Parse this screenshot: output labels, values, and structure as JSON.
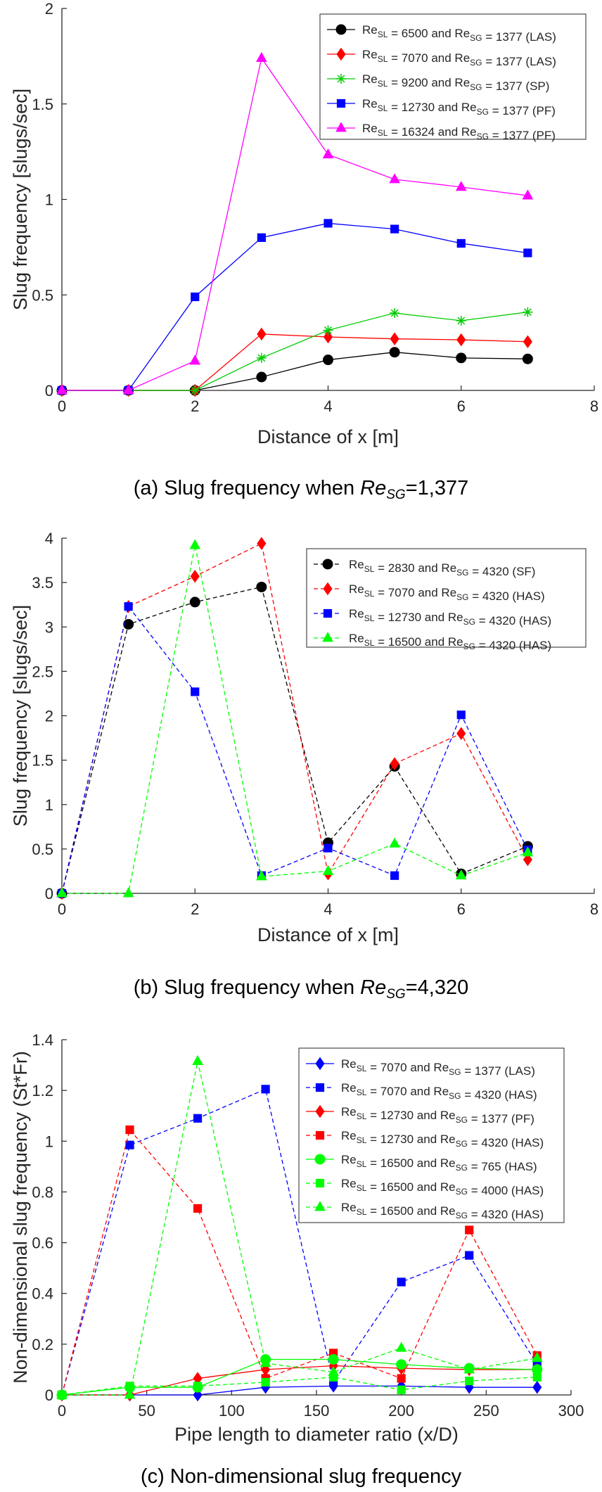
{
  "chart_data": [
    {
      "type": "line",
      "caption": "(a) Slug frequency when Re_SG=1,377",
      "caption_parts": {
        "prefix": "(a)  Slug frequency when ",
        "var": "Re",
        "sub": "SG",
        "suffix": "=1,377"
      },
      "xlabel": "Distance of x [m]",
      "ylabel": "Slug frequency [slugs/sec]",
      "xlim": [
        0,
        8
      ],
      "ylim": [
        0,
        2
      ],
      "xticks": [
        0,
        2,
        4,
        6,
        8
      ],
      "xtick_labels": [
        "0",
        "2",
        "4",
        "6",
        "8"
      ],
      "yticks": [
        0,
        0.5,
        1,
        1.5,
        2
      ],
      "ytick_labels": [
        "0",
        "0.5",
        "1",
        "1.5",
        "2"
      ],
      "grid": false,
      "legend_position": "top-right",
      "line_style": "solid",
      "series": [
        {
          "legend": {
            "sl": "6500",
            "sg": "1377",
            "regime": "(LAS)"
          },
          "color": "#000000",
          "marker": "circle",
          "x": [
            0,
            1,
            2,
            3,
            4,
            5,
            6,
            7
          ],
          "y": [
            0,
            0,
            0,
            0.07,
            0.16,
            0.2,
            0.17,
            0.165
          ]
        },
        {
          "legend": {
            "sl": "7070",
            "sg": "1377",
            "regime": "(LAS)"
          },
          "color": "#ff0000",
          "marker": "diamond",
          "x": [
            0,
            1,
            2,
            3,
            4,
            5,
            6,
            7
          ],
          "y": [
            0,
            0,
            0,
            0.295,
            0.28,
            0.27,
            0.265,
            0.255
          ]
        },
        {
          "legend": {
            "sl": "9200",
            "sg": "1377",
            "regime": "(SP)"
          },
          "color": "#00cc00",
          "marker": "asterisk",
          "x": [
            0,
            1,
            2,
            3,
            4,
            5,
            6,
            7
          ],
          "y": [
            0,
            0,
            0,
            0.17,
            0.315,
            0.405,
            0.365,
            0.41
          ]
        },
        {
          "legend": {
            "sl": "12730",
            "sg": "1377",
            "regime": "(PF)"
          },
          "color": "#0000ff",
          "marker": "square",
          "x": [
            0,
            1,
            2,
            3,
            4,
            5,
            6,
            7
          ],
          "y": [
            0,
            0,
            0.49,
            0.8,
            0.875,
            0.845,
            0.77,
            0.72
          ]
        },
        {
          "legend": {
            "sl": "16324",
            "sg": "1377",
            "regime": "(PF)"
          },
          "color": "#ff00ff",
          "marker": "triangle",
          "x": [
            0,
            1,
            2,
            3,
            4,
            5,
            6,
            7
          ],
          "y": [
            0,
            0,
            0.155,
            1.74,
            1.235,
            1.105,
            1.065,
            1.02
          ]
        }
      ]
    },
    {
      "type": "line",
      "caption": "(b) Slug frequency when Re_SG=4,320",
      "caption_parts": {
        "prefix": "(b)  Slug frequency when ",
        "var": "Re",
        "sub": "SG",
        "suffix": "=4,320"
      },
      "xlabel": "Distance of x [m]",
      "ylabel": "Slug frequency [slugs/sec]",
      "xlim": [
        0,
        8
      ],
      "ylim": [
        0,
        4
      ],
      "xticks": [
        0,
        2,
        4,
        6,
        8
      ],
      "xtick_labels": [
        "0",
        "2",
        "4",
        "6",
        "8"
      ],
      "yticks": [
        0,
        0.5,
        1,
        1.5,
        2,
        2.5,
        3,
        3.5,
        4
      ],
      "ytick_labels": [
        "0",
        "0.5",
        "1",
        "1.5",
        "2",
        "2.5",
        "3",
        "3.5",
        "4"
      ],
      "grid": false,
      "legend_position": "top-right",
      "line_style": "dashed",
      "series": [
        {
          "legend": {
            "sl": "2830",
            "sg": "4320",
            "regime": "(SF)"
          },
          "color": "#000000",
          "marker": "circle",
          "x": [
            0,
            1,
            2,
            3,
            4,
            5,
            6,
            7
          ],
          "y": [
            0,
            3.03,
            3.28,
            3.45,
            0.57,
            1.43,
            0.22,
            0.53
          ]
        },
        {
          "legend": {
            "sl": "7070",
            "sg": "4320",
            "regime": "(HAS)"
          },
          "color": "#ff0000",
          "marker": "diamond",
          "x": [
            0,
            1,
            2,
            3,
            4,
            5,
            6,
            7
          ],
          "y": [
            0,
            3.23,
            3.57,
            3.94,
            0.22,
            1.46,
            1.8,
            0.38
          ]
        },
        {
          "legend": {
            "sl": "12730",
            "sg": "4320",
            "regime": "(HAS)"
          },
          "color": "#0000ff",
          "marker": "square",
          "x": [
            0,
            1,
            2,
            3,
            4,
            5,
            6,
            7
          ],
          "y": [
            0,
            3.23,
            2.27,
            0.2,
            0.51,
            0.2,
            2.01,
            0.49
          ]
        },
        {
          "legend": {
            "sl": "16500",
            "sg": "4320",
            "regime": "(HAS)"
          },
          "color": "#00ff00",
          "marker": "triangle",
          "x": [
            0,
            1,
            2,
            3,
            4,
            5,
            6,
            7
          ],
          "y": [
            0,
            0,
            3.92,
            0.19,
            0.25,
            0.56,
            0.2,
            0.46
          ]
        }
      ]
    },
    {
      "type": "line",
      "caption": "(c) Non-dimensional slug frequency",
      "caption_parts": {
        "prefix": "(c)  Non-dimensional slug frequency",
        "var": "",
        "sub": "",
        "suffix": ""
      },
      "xlabel": "Pipe length to diameter ratio (x/D)",
      "ylabel": "Non-dimensional slug frequency (St*Fr)",
      "xlim": [
        0,
        300
      ],
      "ylim": [
        0,
        1.4
      ],
      "xticks": [
        0,
        50,
        100,
        150,
        200,
        250,
        300
      ],
      "xtick_labels": [
        "0",
        "50",
        "100",
        "150",
        "200",
        "250",
        "300"
      ],
      "yticks": [
        0,
        0.2,
        0.4,
        0.6,
        0.8,
        1,
        1.2,
        1.4
      ],
      "ytick_labels": [
        "0",
        "0.2",
        "0.4",
        "0.6",
        "0.8",
        "1",
        "1.2",
        "1.4"
      ],
      "grid": false,
      "legend_position": "top-right",
      "line_style": "mixed",
      "series": [
        {
          "legend": {
            "sl": "7070",
            "sg": "1377",
            "regime": "(LAS)"
          },
          "color": "#0000ff",
          "marker": "diamond",
          "dash": false,
          "x": [
            0,
            40,
            80,
            120,
            160,
            200,
            240,
            280
          ],
          "y": [
            0,
            0,
            0,
            0.03,
            0.035,
            0.035,
            0.03,
            0.03
          ]
        },
        {
          "legend": {
            "sl": "7070",
            "sg": "4320",
            "regime": "(HAS)"
          },
          "color": "#0000ff",
          "marker": "square",
          "dash": true,
          "x": [
            0,
            40,
            80,
            120,
            160,
            200,
            240,
            280
          ],
          "y": [
            0,
            0.985,
            1.09,
            1.205,
            0.05,
            0.445,
            0.55,
            0.12
          ]
        },
        {
          "legend": {
            "sl": "12730",
            "sg": "1377",
            "regime": "(PF)"
          },
          "color": "#ff0000",
          "marker": "diamond",
          "dash": false,
          "x": [
            0,
            40,
            80,
            120,
            160,
            200,
            240,
            280
          ],
          "y": [
            0,
            0,
            0.065,
            0.1,
            0.115,
            0.105,
            0.1,
            0.1
          ]
        },
        {
          "legend": {
            "sl": "12730",
            "sg": "4320",
            "regime": "(HAS)"
          },
          "color": "#ff0000",
          "marker": "square",
          "dash": true,
          "x": [
            0,
            40,
            80,
            120,
            160,
            200,
            240,
            280
          ],
          "y": [
            0,
            1.045,
            0.735,
            0.065,
            0.165,
            0.065,
            0.65,
            0.155
          ]
        },
        {
          "legend": {
            "sl": "16500",
            "sg": "765",
            "regime": "(HAS)"
          },
          "color": "#00ff00",
          "marker": "circle",
          "dash": false,
          "x": [
            0,
            40,
            80,
            120,
            160,
            200,
            240,
            280
          ],
          "y": [
            0,
            0.03,
            0.03,
            0.14,
            0.14,
            0.12,
            0.105,
            0.1
          ]
        },
        {
          "legend": {
            "sl": "16500",
            "sg": "4000",
            "regime": "(HAS)"
          },
          "color": "#00ff00",
          "marker": "square",
          "dash": true,
          "x": [
            0,
            40,
            80,
            120,
            160,
            200,
            240,
            280
          ],
          "y": [
            0,
            0.035,
            0.035,
            0.05,
            0.07,
            0.02,
            0.055,
            0.07
          ]
        },
        {
          "legend": {
            "sl": "16500",
            "sg": "4320",
            "regime": "(HAS)"
          },
          "color": "#00ff00",
          "marker": "triangle",
          "dash": true,
          "x": [
            0,
            40,
            80,
            120,
            160,
            200,
            240,
            280
          ],
          "y": [
            0,
            0,
            1.315,
            0.125,
            0.09,
            0.185,
            0.1,
            0.145
          ]
        }
      ]
    }
  ]
}
